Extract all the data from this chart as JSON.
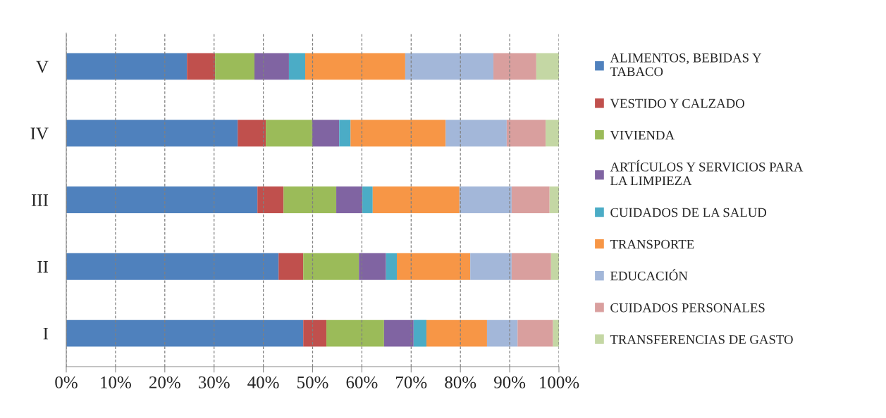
{
  "chart_data": {
    "type": "bar",
    "orientation": "horizontal",
    "stacked": true,
    "categories": [
      "V",
      "IV",
      "III",
      "II",
      "I"
    ],
    "series": [
      {
        "name": "ALIMENTOS, BEBIDAS Y\nTABACO",
        "color": "#4f81bd",
        "values": [
          24.5,
          34.8,
          38.8,
          43.1,
          48.1
        ]
      },
      {
        "name": "VESTIDO Y CALZADO",
        "color": "#c0504d",
        "values": [
          5.7,
          5.7,
          5.3,
          5.0,
          4.7
        ]
      },
      {
        "name": "VIVIENDA",
        "color": "#9bbb59",
        "values": [
          8.0,
          9.4,
          10.7,
          11.3,
          11.7
        ]
      },
      {
        "name": "ARTÍCULOS Y SERVICIOS PARA\nLA LIMPIEZA",
        "color": "#8064a2",
        "values": [
          7.0,
          5.5,
          5.3,
          5.5,
          6.0
        ]
      },
      {
        "name": "CUIDADOS DE LA SALUD",
        "color": "#4bacc6",
        "values": [
          3.3,
          2.3,
          2.1,
          2.2,
          2.6
        ]
      },
      {
        "name": "TRANSPORTE",
        "color": "#f79646",
        "values": [
          20.3,
          19.3,
          17.6,
          14.9,
          12.3
        ]
      },
      {
        "name": "EDUCACIÓN",
        "color": "#a3b7d9",
        "values": [
          17.9,
          12.4,
          10.6,
          8.4,
          6.2
        ]
      },
      {
        "name": "CUIDADOS PERSONALES",
        "color": "#d99f9e",
        "values": [
          8.7,
          7.9,
          7.7,
          8.0,
          7.2
        ]
      },
      {
        "name": "TRANSFERENCIAS DE GASTO",
        "color": "#c4d7a4",
        "values": [
          4.6,
          2.7,
          1.9,
          1.6,
          1.2
        ]
      }
    ],
    "xlim": [
      0,
      100
    ],
    "xticks": [
      {
        "value": 0,
        "label": "0%"
      },
      {
        "value": 10,
        "label": "10%"
      },
      {
        "value": 20,
        "label": "20%"
      },
      {
        "value": 30,
        "label": "30%"
      },
      {
        "value": 40,
        "label": "40%"
      },
      {
        "value": 50,
        "label": "50%"
      },
      {
        "value": 60,
        "label": "60%"
      },
      {
        "value": 70,
        "label": "70%"
      },
      {
        "value": 80,
        "label": "80%"
      },
      {
        "value": 90,
        "label": "90%"
      },
      {
        "value": 100,
        "label": "100%"
      }
    ],
    "grid": "x",
    "legend": "right"
  }
}
